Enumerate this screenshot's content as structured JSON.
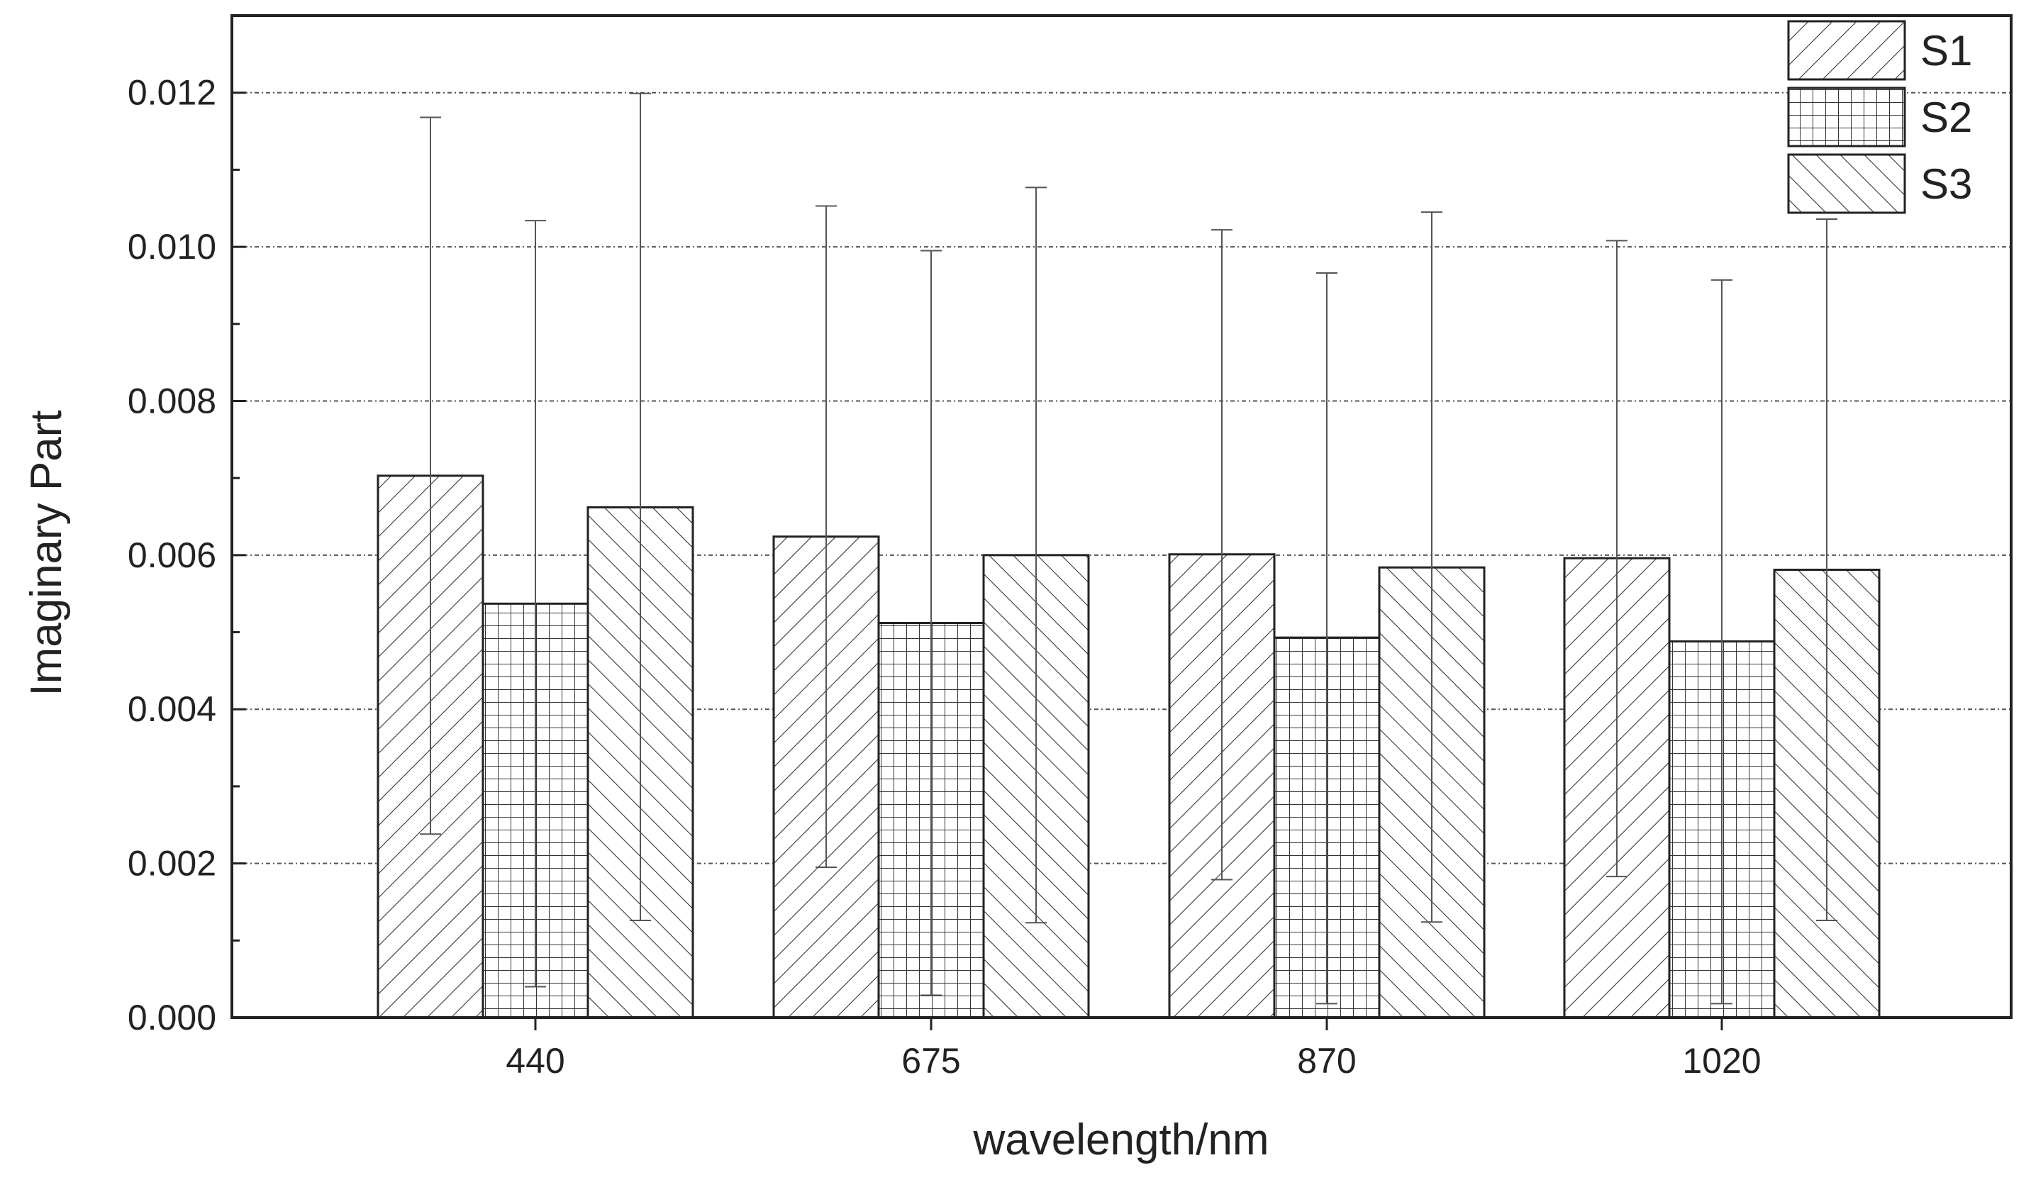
{
  "chart_data": {
    "type": "bar",
    "title": "",
    "xlabel": "wavelength/nm",
    "ylabel": "Imaginary Part",
    "categories": [
      "440",
      "675",
      "870",
      "1020"
    ],
    "ylim": [
      0,
      0.013
    ],
    "yticks": [
      "0.000",
      "0.002",
      "0.004",
      "0.006",
      "0.008",
      "0.010",
      "0.012"
    ],
    "grid": "horizontal dotted",
    "legend_position": "top-right",
    "series": [
      {
        "name": "S1",
        "pattern": "forward-diagonal-hatch",
        "values": [
          0.00703,
          0.00624,
          0.00601,
          0.00596
        ],
        "error_upper": [
          0.01168,
          0.01053,
          0.01022,
          0.01008
        ],
        "error_lower": [
          0.00238,
          0.00195,
          0.00179,
          0.00183
        ]
      },
      {
        "name": "S2",
        "pattern": "grid",
        "values": [
          0.00537,
          0.00512,
          0.00493,
          0.00488
        ],
        "error_upper": [
          0.01034,
          0.00995,
          0.00966,
          0.00957
        ],
        "error_lower": [
          0.0004,
          0.00029,
          0.00018,
          0.00018
        ]
      },
      {
        "name": "S3",
        "pattern": "backward-diagonal-hatch",
        "values": [
          0.00662,
          0.006,
          0.00584,
          0.00581
        ],
        "error_upper": [
          0.01199,
          0.01077,
          0.01045,
          0.01036
        ],
        "error_lower": [
          0.00126,
          0.00123,
          0.00124,
          0.00126
        ]
      }
    ],
    "colors": {
      "axis": "#222222",
      "bar_outline": "#222222",
      "grid": "#555555",
      "background": "#ffffff"
    }
  }
}
